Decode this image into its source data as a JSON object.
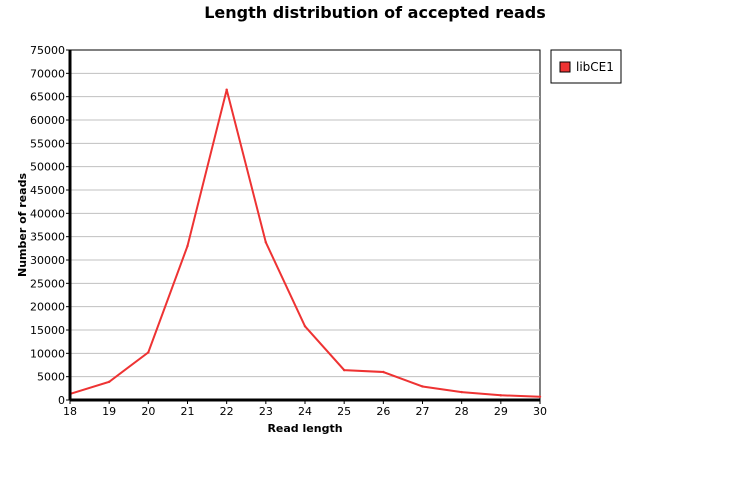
{
  "chart_data": {
    "type": "line",
    "title": "Length distribution of accepted reads",
    "xlabel": "Read length",
    "ylabel": "Number of reads",
    "x": [
      18,
      19,
      20,
      21,
      22,
      23,
      24,
      25,
      26,
      27,
      28,
      29,
      30
    ],
    "xlim": [
      18,
      30
    ],
    "ylim": [
      0,
      75000
    ],
    "y_ticks": [
      0,
      5000,
      10000,
      15000,
      20000,
      25000,
      30000,
      35000,
      40000,
      45000,
      50000,
      55000,
      60000,
      65000,
      70000,
      75000
    ],
    "grid": true,
    "legend_position": "right",
    "series": [
      {
        "name": "libCE1",
        "color": "#ee3333",
        "values": [
          1300,
          3900,
          10200,
          33000,
          66500,
          33800,
          15800,
          6400,
          6000,
          2900,
          1700,
          1000,
          700
        ]
      }
    ]
  }
}
